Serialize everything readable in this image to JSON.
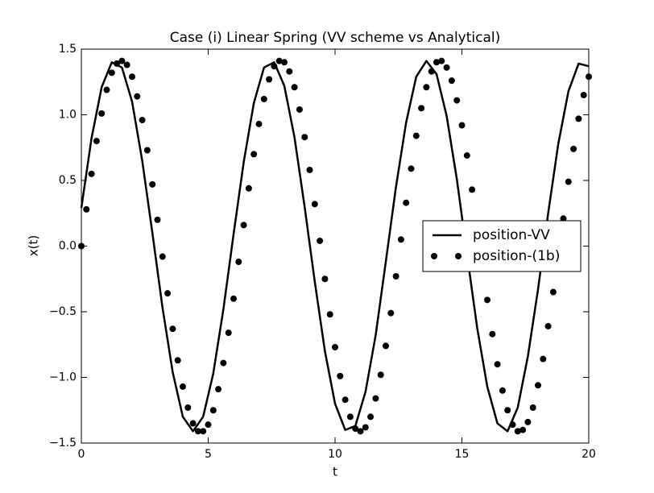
{
  "chart_data": {
    "type": "line",
    "title": "Case (i) Linear Spring (VV scheme vs Analytical)",
    "xlabel": "t",
    "ylabel": "x(t)",
    "xlim": [
      0,
      20
    ],
    "ylim": [
      -1.5,
      1.5
    ],
    "xticks": [
      0,
      5,
      10,
      15,
      20
    ],
    "yticks": [
      {
        "value": -1.5,
        "label": "−1.5"
      },
      {
        "value": -1.0,
        "label": "−1.0"
      },
      {
        "value": -0.5,
        "label": "−0.5"
      },
      {
        "value": 0,
        "label": "0.0"
      },
      0.5,
      {
        "value": 1.0,
        "label": "1.0"
      },
      1.5
    ],
    "legend": "center right",
    "series": [
      {
        "name": "position-VV",
        "type": "line",
        "color": "#000000",
        "x": [
          0,
          0.4,
          0.8,
          1.2,
          1.6,
          2.0,
          2.4,
          2.8,
          3.2,
          3.6,
          4.0,
          4.4,
          4.8,
          5.2,
          5.6,
          6.0,
          6.4,
          6.8,
          7.2,
          7.6,
          8.0,
          8.4,
          8.8,
          9.2,
          9.6,
          10.0,
          10.4,
          10.8,
          11.2,
          11.6,
          12.0,
          12.4,
          12.8,
          13.2,
          13.6,
          14.0,
          14.4,
          14.8,
          15.2,
          15.6,
          16.0,
          16.4,
          16.8,
          17.2,
          17.6,
          18.0,
          18.4,
          18.8,
          19.2,
          19.6,
          20.0
        ],
        "values": [
          0.29,
          0.82,
          1.21,
          1.4,
          1.36,
          1.1,
          0.65,
          0.1,
          -0.47,
          -0.96,
          -1.3,
          -1.41,
          -1.3,
          -0.97,
          -0.48,
          0.09,
          0.64,
          1.09,
          1.36,
          1.4,
          1.22,
          0.83,
          0.3,
          -0.27,
          -0.8,
          -1.2,
          -1.4,
          -1.37,
          -1.11,
          -0.68,
          -0.12,
          0.45,
          0.94,
          1.29,
          1.41,
          1.31,
          0.99,
          0.51,
          -0.06,
          -0.62,
          -1.07,
          -1.35,
          -1.41,
          -1.23,
          -0.84,
          -0.33,
          0.25,
          0.78,
          1.18,
          1.39,
          1.37
        ]
      },
      {
        "name": "position-(1b)",
        "type": "scatter",
        "color": "#000000",
        "x": [
          0,
          0.2,
          0.4,
          0.6,
          0.8,
          1.0,
          1.2,
          1.4,
          1.6,
          1.8,
          2.0,
          2.2,
          2.4,
          2.6,
          2.8,
          3.0,
          3.2,
          3.4,
          3.6,
          3.8,
          4.0,
          4.2,
          4.4,
          4.6,
          4.8,
          5.0,
          5.2,
          5.4,
          5.6,
          5.8,
          6.0,
          6.2,
          6.4,
          6.6,
          6.8,
          7.0,
          7.2,
          7.4,
          7.6,
          7.8,
          8.0,
          8.2,
          8.4,
          8.6,
          8.8,
          9.0,
          9.2,
          9.4,
          9.6,
          9.8,
          10.0,
          10.2,
          10.4,
          10.6,
          10.8,
          11.0,
          11.2,
          11.4,
          11.6,
          11.8,
          12.0,
          12.2,
          12.4,
          12.6,
          12.8,
          13.0,
          13.2,
          13.4,
          13.6,
          13.8,
          14.0,
          14.2,
          14.4,
          14.6,
          14.8,
          15.0,
          15.2,
          15.4,
          15.6,
          15.8,
          16.0,
          16.2,
          16.4,
          16.6,
          16.8,
          17.0,
          17.2,
          17.4,
          17.6,
          17.8,
          18.0,
          18.2,
          18.4,
          18.6,
          18.8,
          19.0,
          19.2,
          19.4,
          19.6,
          19.8,
          20.0
        ],
        "values": [
          0,
          0.28,
          0.55,
          0.8,
          1.01,
          1.19,
          1.32,
          1.39,
          1.41,
          1.38,
          1.29,
          1.14,
          0.96,
          0.73,
          0.47,
          0.2,
          -0.08,
          -0.36,
          -0.63,
          -0.87,
          -1.07,
          -1.23,
          -1.35,
          -1.41,
          -1.41,
          -1.36,
          -1.25,
          -1.09,
          -0.89,
          -0.66,
          -0.4,
          -0.12,
          0.16,
          0.44,
          0.7,
          0.93,
          1.12,
          1.27,
          1.37,
          1.41,
          1.4,
          1.33,
          1.21,
          1.04,
          0.83,
          0.58,
          0.32,
          0.04,
          -0.25,
          -0.52,
          -0.77,
          -0.99,
          -1.17,
          -1.3,
          -1.39,
          -1.41,
          -1.38,
          -1.3,
          -1.16,
          -0.98,
          -0.76,
          -0.51,
          -0.23,
          0.05,
          0.33,
          0.59,
          0.84,
          1.05,
          1.21,
          1.33,
          1.4,
          1.41,
          1.36,
          1.26,
          1.11,
          0.92,
          0.69,
          0.43,
          0.15,
          -0.13,
          -0.41,
          -0.67,
          -0.9,
          -1.1,
          -1.25,
          -1.36,
          -1.41,
          -1.4,
          -1.34,
          -1.23,
          -1.06,
          -0.86,
          -0.61,
          -0.35,
          -0.07,
          0.21,
          0.49,
          0.74,
          0.97,
          1.15,
          1.29
        ]
      }
    ]
  }
}
